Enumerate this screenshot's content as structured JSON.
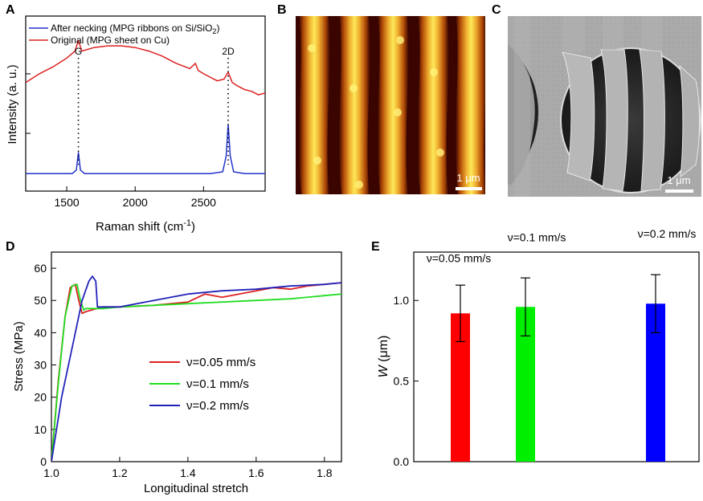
{
  "panels": {
    "A": "A",
    "B": "B",
    "C": "C",
    "D": "D",
    "E": "E"
  },
  "images": {
    "B": {
      "scalebar": "1 μm",
      "colormap": [
        "#3a0500",
        "#8a2500",
        "#d06a10",
        "#f2b52a",
        "#fff060"
      ]
    },
    "C": {
      "scalebar": "1 μm"
    }
  },
  "chart_data": [
    {
      "id": "A",
      "type": "line",
      "xlabel_main": "Raman shift (cm",
      "xlabel_sup": "-1",
      "xlabel_end": ")",
      "ylabel": "Intensity (a. u.)",
      "xlim": [
        1200,
        2950
      ],
      "xticks": [
        "1500",
        "2000",
        "2500"
      ],
      "legend": [
        {
          "label": "After necking (MPG ribbons on Si/SiO",
          "sub": "2",
          "tail": ")",
          "color": "#2233cc"
        },
        {
          "label": "Original (MPG sheet on Cu)",
          "color": "#dd2222"
        }
      ],
      "peaks": [
        {
          "label": "G",
          "x": 1585
        },
        {
          "label": "2D",
          "x": 2680
        }
      ],
      "series": [
        {
          "name": "Original (MPG sheet on Cu)",
          "color": "#dd2222",
          "x": [
            1200,
            1300,
            1400,
            1500,
            1560,
            1585,
            1610,
            1700,
            1800,
            1900,
            2000,
            2100,
            2200,
            2300,
            2400,
            2440,
            2460,
            2500,
            2600,
            2650,
            2680,
            2710,
            2750,
            2800,
            2850,
            2900,
            2950
          ],
          "y": [
            0.62,
            0.67,
            0.71,
            0.76,
            0.8,
            0.86,
            0.8,
            0.82,
            0.83,
            0.83,
            0.82,
            0.8,
            0.77,
            0.73,
            0.7,
            0.73,
            0.69,
            0.67,
            0.63,
            0.64,
            0.68,
            0.62,
            0.6,
            0.58,
            0.57,
            0.55,
            0.56
          ]
        },
        {
          "name": "After necking (MPG ribbons on Si/SiO2)",
          "color": "#2233cc",
          "x": [
            1200,
            1400,
            1540,
            1570,
            1585,
            1600,
            1630,
            1800,
            2000,
            2200,
            2400,
            2550,
            2640,
            2665,
            2680,
            2695,
            2720,
            2800,
            2950
          ],
          "y": [
            0.1,
            0.1,
            0.1,
            0.12,
            0.22,
            0.12,
            0.1,
            0.1,
            0.1,
            0.1,
            0.1,
            0.1,
            0.11,
            0.2,
            0.38,
            0.2,
            0.11,
            0.1,
            0.1
          ]
        }
      ]
    },
    {
      "id": "D",
      "type": "line",
      "xlabel": "Longitudinal stretch",
      "ylabel": "Stress (MPa)",
      "xlim": [
        1.0,
        1.85
      ],
      "ylim": [
        0,
        65
      ],
      "xticks": [
        "1.0",
        "1.2",
        "1.4",
        "1.6",
        "1.8"
      ],
      "yticks": [
        "0",
        "10",
        "20",
        "30",
        "40",
        "50",
        "60"
      ],
      "series": [
        {
          "name": "ν=0.05 mm/s",
          "color": "#dd2222",
          "x": [
            1.0,
            1.02,
            1.04,
            1.055,
            1.07,
            1.08,
            1.09,
            1.1,
            1.15,
            1.2,
            1.3,
            1.4,
            1.45,
            1.5,
            1.55,
            1.6,
            1.65,
            1.7,
            1.75,
            1.8,
            1.85
          ],
          "y": [
            0,
            25,
            45,
            54,
            55,
            50,
            46,
            46.5,
            48,
            48,
            48.5,
            49.5,
            52,
            51,
            52,
            53,
            54,
            53.5,
            54.5,
            55,
            55.5
          ]
        },
        {
          "name": "ν=0.1 mm/s",
          "color": "#22dd22",
          "x": [
            1.0,
            1.02,
            1.04,
            1.06,
            1.075,
            1.085,
            1.095,
            1.1,
            1.15,
            1.2,
            1.3,
            1.4,
            1.5,
            1.6,
            1.7,
            1.8,
            1.85
          ],
          "y": [
            0,
            24,
            45,
            54.5,
            55,
            50,
            47,
            47.5,
            47.5,
            48,
            48.5,
            49,
            49.5,
            50,
            50.5,
            51.5,
            52
          ]
        },
        {
          "name": "ν=0.2 mm/s",
          "color": "#2222bb",
          "x": [
            1.0,
            1.03,
            1.06,
            1.09,
            1.11,
            1.12,
            1.13,
            1.135,
            1.2,
            1.3,
            1.4,
            1.5,
            1.6,
            1.7,
            1.8,
            1.85
          ],
          "y": [
            0,
            20,
            35,
            50,
            56,
            57.5,
            56,
            48,
            48,
            50,
            52,
            53,
            53.5,
            54.5,
            55,
            55.5
          ]
        }
      ]
    },
    {
      "id": "E",
      "type": "bar",
      "ylabel_sym": "W",
      "ylabel_unit": " (μm)",
      "ylim": [
        0,
        1.3
      ],
      "yticks": [
        "0.0",
        "0.5",
        "1.0"
      ],
      "series": [
        {
          "name": "ν=0.05 mm/s",
          "value": 0.92,
          "error": 0.175,
          "color": "#ff0000",
          "slot": 0
        },
        {
          "name": "ν=0.1 mm/s",
          "value": 0.96,
          "error": 0.18,
          "color": "#00ee00",
          "slot": 1
        },
        {
          "name": "ν=0.2 mm/s",
          "value": 0.98,
          "error": 0.18,
          "color": "#0000ff",
          "slot": 3
        }
      ]
    }
  ]
}
